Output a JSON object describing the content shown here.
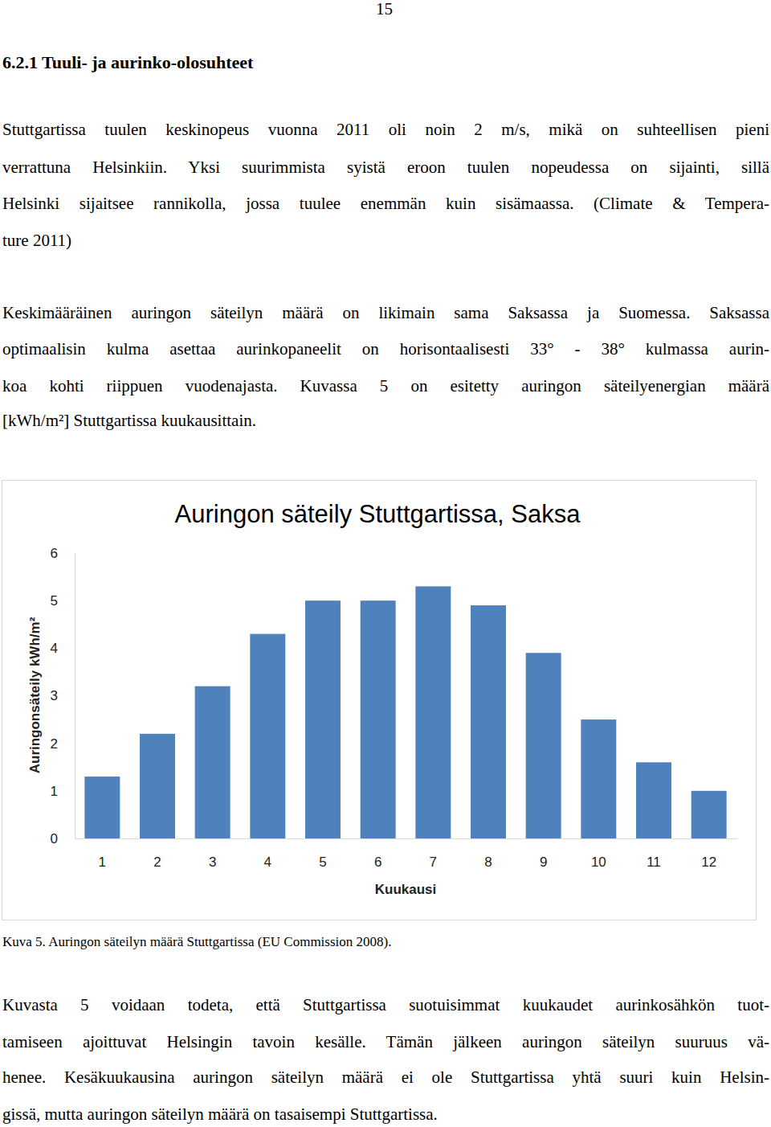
{
  "page_number": "15",
  "heading": "6.2.1 Tuuli- ja aurinko-olosuhteet",
  "paragraphs": [
    [
      "Stuttgartissa tuulen keskinopeus vuonna 2011 oli noin 2 m/s, mikä on suhteellisen pieni",
      "verrattuna Helsinkiin. Yksi suurimmista syistä eroon tuulen nopeudessa on sijainti, sillä",
      "Helsinki sijaitsee rannikolla, jossa tuulee enemmän kuin sisämaassa. (Climate & Tempera-",
      "ture 2011)"
    ],
    [
      "Keskimääräinen auringon säteilyn määrä on likimain sama Saksassa ja Suomessa. Saksassa",
      "optimaalisin kulma asettaa aurinkopaneelit on horisontaalisesti 33° - 38° kulmassa aurin-",
      "koa kohti riippuen vuodenajasta. Kuvassa 5 on esitetty auringon säteilyenergian määrä",
      "[kWh/m²] Stuttgartissa kuukausittain."
    ],
    [
      "Kuvasta 5 voidaan todeta, että Stuttgartissa suotuisimmat kuukaudet aurinkosähkön tuot-",
      "tamiseen ajoittuvat Helsingin tavoin kesälle. Tämän jälkeen auringon säteilyn suuruus vä-",
      "henee. Kesäkuukausina auringon säteilyn määrä ei ole Stuttgartissa yhtä suuri kuin Helsin-",
      "gissä, mutta auringon säteilyn määrä on tasaisempi Stuttgartissa."
    ]
  ],
  "chart_data": {
    "type": "bar",
    "title": "Auringon säteily Stuttgartissa, Saksa",
    "x_label": "Kuukausi",
    "y_label": "Auringonsäteily kWh/m²",
    "categories": [
      "1",
      "2",
      "3",
      "4",
      "5",
      "6",
      "7",
      "8",
      "9",
      "10",
      "11",
      "12"
    ],
    "values": [
      1.3,
      2.2,
      3.2,
      4.3,
      5.0,
      5.0,
      5.3,
      4.9,
      3.9,
      2.5,
      1.6,
      1.0
    ],
    "color": "#4f81bd",
    "ylim": [
      0,
      6
    ],
    "yticks": [
      0,
      1,
      2,
      3,
      4,
      5,
      6
    ],
    "grid": false
  },
  "caption": "Kuva 5. Auringon säteilyn määrä Stuttgartissa (EU Commission 2008)."
}
